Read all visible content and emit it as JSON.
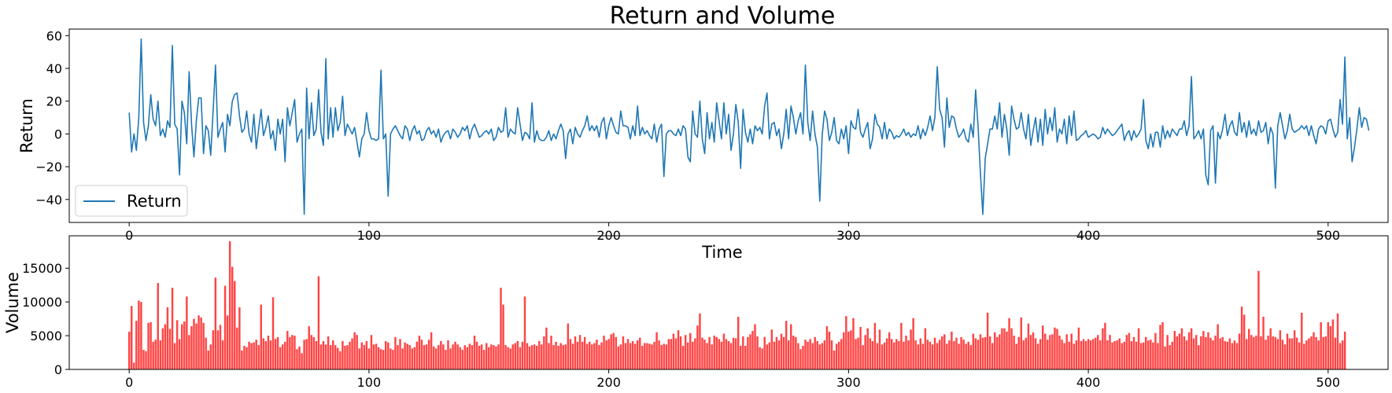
{
  "figure": {
    "title": "Return and Volume"
  },
  "chart_data": [
    {
      "type": "line",
      "title": "Return and Volume",
      "xlabel": "Time",
      "ylabel": "Return",
      "xlim": [
        -25,
        525
      ],
      "ylim": [
        -54,
        64
      ],
      "xticks": [
        0,
        100,
        200,
        300,
        400,
        500
      ],
      "yticks": [
        -40,
        -20,
        0,
        20,
        40,
        60
      ],
      "grid": false,
      "legend": "lower-left",
      "series": [
        {
          "name": "Return",
          "color": "#1f77b4",
          "x_start": 0,
          "x_step": 1,
          "values": [
            13,
            -11,
            0,
            -10,
            10,
            58,
            7,
            -4,
            5,
            24,
            9,
            5,
            20,
            -1,
            3,
            -2,
            8,
            4,
            54,
            6,
            3,
            -25,
            20,
            13,
            -6,
            38,
            6,
            -14,
            8,
            22,
            22,
            -12,
            5,
            2,
            -13,
            14,
            42,
            -2,
            3,
            7,
            -11,
            12,
            5,
            20,
            24,
            25,
            11,
            1,
            3,
            14,
            0,
            -5,
            12,
            -9,
            3,
            15,
            -1,
            4,
            11,
            -3,
            2,
            -10,
            9,
            0,
            9,
            -17,
            16,
            5,
            13,
            21,
            -5,
            0,
            3,
            -49,
            28,
            -3,
            19,
            -1,
            3,
            27,
            1,
            -7,
            46,
            -3,
            16,
            -2,
            16,
            2,
            7,
            23,
            -1,
            6,
            3,
            0,
            4,
            -5,
            -14,
            -3,
            0,
            13,
            2,
            -3,
            -3,
            -4,
            -3,
            39,
            -3,
            0,
            -38,
            0,
            3,
            5,
            2,
            -1,
            -3,
            5,
            3,
            -4,
            2,
            5,
            0,
            2,
            -4,
            -3,
            2,
            4,
            0,
            2,
            -2,
            3,
            -5,
            -1,
            1,
            2,
            -3,
            3,
            1,
            -2,
            0,
            4,
            2,
            5,
            -3,
            3,
            6,
            2,
            -2,
            -1,
            1,
            2,
            0,
            3,
            -4,
            -2,
            4,
            1,
            2,
            16,
            -2,
            3,
            1,
            0,
            16,
            6,
            -4,
            1,
            0,
            -3,
            19,
            -5,
            2,
            -3,
            -4,
            -4,
            -2,
            2,
            -4,
            0,
            -3,
            2,
            6,
            2,
            -15,
            0,
            3,
            -6,
            4,
            0,
            -2,
            2,
            5,
            11,
            2,
            5,
            2,
            5,
            -2,
            7,
            10,
            -3,
            5,
            10,
            5,
            1,
            0,
            14,
            5,
            5,
            4,
            -3,
            5,
            -1,
            17,
            -1,
            4,
            0,
            2,
            -1,
            -3,
            6,
            -5,
            3,
            6,
            -26,
            0,
            2,
            2,
            0,
            -1,
            3,
            -1,
            5,
            3,
            -14,
            -17,
            14,
            0,
            -2,
            20,
            -3,
            -12,
            13,
            -3,
            7,
            -5,
            19,
            8,
            -3,
            19,
            0,
            12,
            -10,
            0,
            18,
            7,
            -21,
            15,
            1,
            -5,
            3,
            -6,
            5,
            2,
            4,
            0,
            17,
            25,
            -3,
            6,
            7,
            -1,
            3,
            -9,
            0,
            15,
            -3,
            17,
            10,
            0,
            8,
            13,
            0,
            42,
            7,
            -4,
            14,
            0,
            -8,
            -41,
            -1,
            14,
            9,
            -4,
            1,
            10,
            -4,
            -6,
            3,
            -3,
            5,
            -12,
            8,
            4,
            3,
            15,
            1,
            -2,
            3,
            7,
            -9,
            -3,
            12,
            6,
            4,
            -3,
            7,
            -3,
            3,
            1,
            -3,
            -1,
            -2,
            0,
            3,
            -1,
            1,
            -2,
            0,
            -1,
            5,
            -3,
            3,
            -1,
            4,
            11,
            2,
            10,
            41,
            15,
            10,
            -8,
            22,
            4,
            11,
            10,
            3,
            -2,
            0,
            3,
            -3,
            -5,
            6,
            -2,
            27,
            5,
            -24,
            -49,
            -15,
            -6,
            3,
            3,
            11,
            3,
            19,
            -2,
            12,
            3,
            -13,
            17,
            9,
            3,
            4,
            13,
            3,
            -3,
            12,
            -7,
            2,
            10,
            -5,
            9,
            -7,
            15,
            0,
            10,
            2,
            16,
            -5,
            3,
            0,
            9,
            -6,
            11,
            -1,
            14,
            -4,
            -3,
            -1,
            0,
            2,
            -2,
            -1,
            0,
            -1,
            -3,
            -2,
            4,
            0,
            3,
            1,
            -1,
            0,
            2,
            4,
            6,
            -4,
            0,
            2,
            -4,
            2,
            -2,
            0,
            3,
            21,
            -4,
            -9,
            0,
            -8,
            1,
            1,
            -8,
            5,
            -3,
            2,
            -2,
            3,
            1,
            -1,
            3,
            3,
            8,
            -1,
            5,
            35,
            -3,
            -1,
            2,
            -3,
            3,
            -25,
            -31,
            2,
            5,
            -30,
            1,
            -3,
            3,
            12,
            -1,
            5,
            8,
            1,
            -1,
            13,
            1,
            7,
            -2,
            8,
            0,
            3,
            -1,
            8,
            1,
            2,
            7,
            -6,
            4,
            0,
            -33,
            5,
            13,
            5,
            -3,
            2,
            12,
            3,
            1,
            2,
            3,
            5,
            3,
            5,
            -1,
            5,
            -1,
            -6,
            3,
            5,
            4,
            0,
            8,
            9,
            3,
            -2,
            1,
            21,
            6,
            47,
            -3,
            10,
            -17,
            -8,
            3,
            16,
            4,
            10,
            9,
            2
          ]
        }
      ]
    },
    {
      "type": "bar",
      "ylabel": "Volume",
      "xlim": [
        -25,
        525
      ],
      "ylim": [
        0,
        19800
      ],
      "xticks": [
        0,
        100,
        200,
        300,
        400,
        500
      ],
      "yticks": [
        0,
        5000,
        10000,
        15000
      ],
      "grid": false,
      "series": [
        {
          "color": "#ff4444",
          "x_start": 0,
          "x_step": 1,
          "values": [
            5600,
            9400,
            1000,
            7200,
            10200,
            10000,
            2900,
            2700,
            6900,
            7000,
            4100,
            4400,
            12800,
            4300,
            6100,
            6700,
            9200,
            6000,
            12100,
            3900,
            7300,
            4500,
            6700,
            7100,
            10800,
            5100,
            6400,
            7500,
            6800,
            8000,
            7700,
            6900,
            4700,
            2800,
            3700,
            5800,
            13600,
            5800,
            6600,
            4300,
            12400,
            8000,
            19000,
            15200,
            13100,
            6200,
            9200,
            2800,
            3500,
            3300,
            4100,
            3900,
            4000,
            4400,
            3600,
            9600,
            4600,
            4200,
            5000,
            4300,
            10700,
            4500,
            4800,
            3300,
            3700,
            4100,
            5700,
            4800,
            5100,
            5000,
            3000,
            3400,
            2400,
            4400,
            4500,
            6400,
            5100,
            4800,
            4200,
            13800,
            3700,
            4200,
            3700,
            4900,
            3600,
            4300,
            3600,
            3200,
            2700,
            4200,
            3500,
            3600,
            4100,
            4600,
            5500,
            5100,
            3100,
            4000,
            3600,
            4200,
            3100,
            5100,
            3700,
            3800,
            3300,
            3000,
            2900,
            4200,
            4000,
            3100,
            2900,
            4800,
            3600,
            4500,
            3100,
            4000,
            3800,
            3600,
            3100,
            3300,
            4100,
            5000,
            4400,
            3600,
            3700,
            4400,
            5500,
            3400,
            3100,
            3600,
            4200,
            3700,
            2900,
            4300,
            3100,
            3700,
            4100,
            3700,
            3300,
            2900,
            3600,
            3300,
            3800,
            3600,
            5000,
            4100,
            3500,
            3700,
            2900,
            3900,
            3300,
            3700,
            3600,
            3400,
            3700,
            12100,
            9600,
            3600,
            3300,
            3100,
            3700,
            3900,
            4200,
            3300,
            4100,
            10800,
            3900,
            3400,
            3600,
            3700,
            3500,
            4200,
            3700,
            4900,
            6200,
            3900,
            5000,
            3600,
            4100,
            3500,
            3900,
            3600,
            3700,
            6800,
            4500,
            3800,
            4900,
            4100,
            5100,
            4100,
            4800,
            3800,
            4100,
            3700,
            3900,
            4400,
            3600,
            4000,
            5000,
            4300,
            4500,
            5200,
            5400,
            4800,
            3400,
            3700,
            4900,
            3900,
            4500,
            3900,
            4200,
            3800,
            4300,
            4700,
            3500,
            3900,
            3900,
            3800,
            3700,
            4100,
            5500,
            4300,
            3600,
            3800,
            3700,
            4500,
            4500,
            5300,
            4600,
            5800,
            4900,
            3500,
            5100,
            4000,
            5400,
            4100,
            4600,
            6500,
            8300,
            4700,
            4400,
            3900,
            4800,
            3700,
            5000,
            4800,
            4500,
            4100,
            5300,
            4500,
            4200,
            3900,
            4700,
            4600,
            7800,
            3500,
            4900,
            3500,
            4800,
            5200,
            5700,
            6700,
            4900,
            3300,
            3100,
            4800,
            3700,
            4000,
            5900,
            4100,
            4800,
            4300,
            5300,
            4800,
            7200,
            4300,
            6700,
            5000,
            4800,
            3900,
            3000,
            3500,
            4400,
            4100,
            4500,
            3900,
            4800,
            4200,
            3700,
            3900,
            4300,
            6400,
            5600,
            4300,
            2800,
            3800,
            4100,
            4500,
            5500,
            7900,
            5600,
            5800,
            7600,
            4500,
            4700,
            6300,
            3600,
            5100,
            6100,
            4600,
            4200,
            6900,
            3900,
            5900,
            3700,
            4000,
            4600,
            5500,
            4500,
            4000,
            4500,
            4200,
            6900,
            4100,
            5000,
            4300,
            5900,
            7600,
            4300,
            3700,
            4600,
            3800,
            6100,
            4400,
            4100,
            3700,
            4700,
            3900,
            4400,
            4900,
            5200,
            3800,
            4300,
            5600,
            4200,
            4700,
            3800,
            4800,
            4400,
            3800,
            4100,
            3600,
            5300,
            4600,
            4400,
            5200,
            4700,
            4800,
            8400,
            4900,
            3900,
            5500,
            4800,
            5200,
            6100,
            6100,
            5600,
            7600,
            6100,
            5000,
            3800,
            4800,
            7700,
            4300,
            4700,
            6800,
            5100,
            5500,
            4600,
            3800,
            4500,
            6500,
            5300,
            4400,
            5100,
            5200,
            6200,
            6000,
            5000,
            4400,
            3900,
            5200,
            4100,
            5300,
            3800,
            4300,
            6200,
            4200,
            4500,
            4200,
            4500,
            4300,
            4500,
            4700,
            5100,
            4300,
            6100,
            6900,
            4300,
            5100,
            4000,
            4200,
            4300,
            4600,
            3900,
            4100,
            5100,
            5400,
            4200,
            4800,
            4100,
            6100,
            3900,
            4000,
            4800,
            4300,
            4400,
            4000,
            5400,
            3900,
            6600,
            7000,
            3400,
            5100,
            3600,
            4100,
            5700,
            4900,
            5300,
            6100,
            4900,
            4300,
            5500,
            6100,
            4600,
            5100,
            3600,
            4900,
            5700,
            4800,
            5500,
            4700,
            4300,
            5000,
            6700,
            4600,
            4800,
            4200,
            4100,
            4600,
            3900,
            4300,
            3900,
            5300,
            9300,
            8100,
            4500,
            6000,
            5100,
            4800,
            5000,
            14600,
            4900,
            7800,
            4400,
            5000,
            6100,
            4900,
            4800,
            4500,
            5800,
            4400,
            3700,
            5300,
            4600,
            4600,
            5800,
            4700,
            4000,
            8400,
            3800,
            4300,
            4600,
            4900,
            5500,
            4800,
            4300,
            7000,
            4800,
            4900,
            7000,
            6400,
            7400,
            4700,
            8300,
            3900,
            4300,
            5600
          ]
        }
      ]
    }
  ]
}
